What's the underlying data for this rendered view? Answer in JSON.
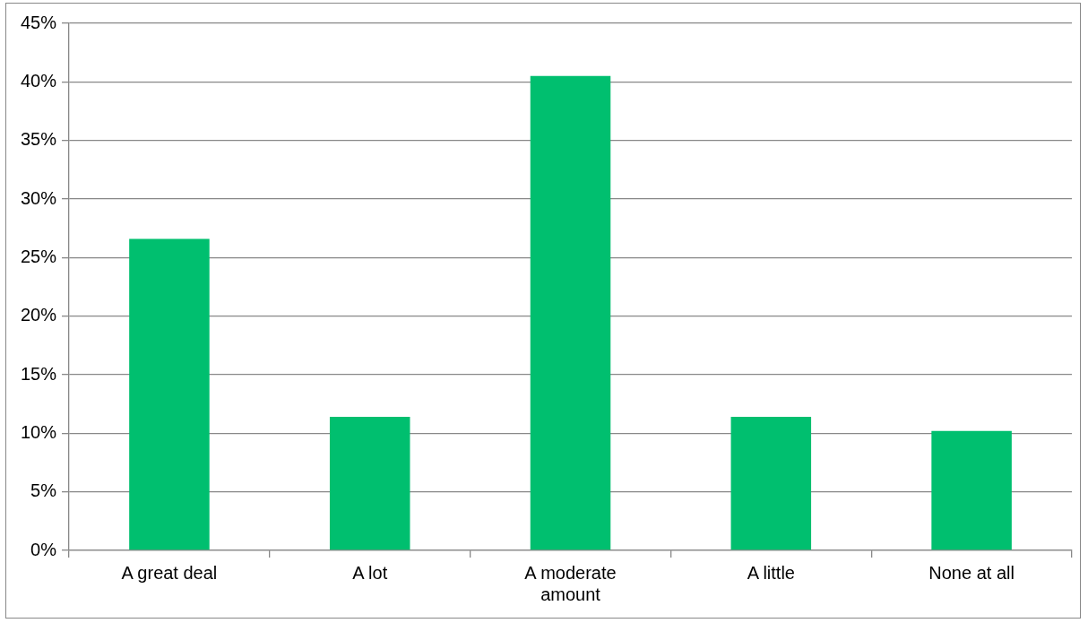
{
  "chart_data": {
    "type": "bar",
    "categories": [
      "A great deal",
      "A lot",
      "A moderate amount",
      "A little",
      "None at all"
    ],
    "values": [
      26.6,
      11.4,
      40.5,
      11.4,
      10.2
    ],
    "color": "#00bf6f",
    "ylim": [
      0,
      45
    ],
    "yticks": [
      {
        "value": 0,
        "label": "0%"
      },
      {
        "value": 5,
        "label": "5%"
      },
      {
        "value": 10,
        "label": "10%"
      },
      {
        "value": 15,
        "label": "15%"
      },
      {
        "value": 20,
        "label": "20%"
      },
      {
        "value": 25,
        "label": "25%"
      },
      {
        "value": 30,
        "label": "30%"
      },
      {
        "value": 35,
        "label": "35%"
      },
      {
        "value": 40,
        "label": "40%"
      },
      {
        "value": 45,
        "label": "45%"
      }
    ],
    "grid": "y",
    "legend": false
  }
}
